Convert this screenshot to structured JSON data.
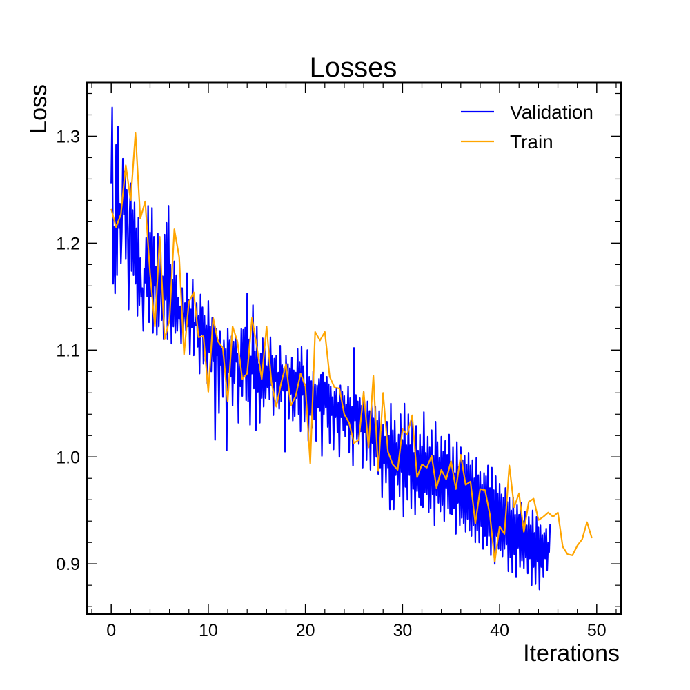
{
  "chart_data": {
    "type": "line",
    "title": "Losses",
    "xlabel": "Iterations",
    "ylabel": "Loss",
    "xlim": [
      -2.5,
      52.5
    ],
    "ylim": [
      0.853,
      1.35
    ],
    "xticks": [
      0,
      10,
      20,
      30,
      40,
      50
    ],
    "xtick_labels": [
      "0",
      "10",
      "20",
      "30",
      "40",
      "50"
    ],
    "yticks": [
      0.9,
      1.0,
      1.1,
      1.2,
      1.3
    ],
    "ytick_labels": [
      "0.9",
      "1.0",
      "1.1",
      "1.2",
      "1.3"
    ],
    "grid": false,
    "legend_position": "upper right",
    "series": [
      {
        "name": "Validation",
        "color": "#0000ff",
        "x_start": 0,
        "x_step": 0.1,
        "values": [
          1.256,
          1.327,
          1.162,
          1.215,
          1.153,
          1.292,
          1.17,
          1.309,
          1.214,
          1.237,
          1.181,
          1.211,
          1.279,
          1.227,
          1.267,
          1.185,
          1.25,
          1.214,
          1.138,
          1.229,
          1.256,
          1.174,
          1.231,
          1.17,
          1.238,
          1.162,
          1.214,
          1.132,
          1.224,
          1.142,
          1.186,
          1.15,
          1.158,
          1.118,
          1.176,
          1.163,
          1.205,
          1.15,
          1.235,
          1.126,
          1.21,
          1.15,
          1.233,
          1.116,
          1.206,
          1.16,
          1.178,
          1.114,
          1.209,
          1.122,
          1.153,
          1.192,
          1.128,
          1.169,
          1.11,
          1.208,
          1.147,
          1.219,
          1.11,
          1.235,
          1.128,
          1.18,
          1.106,
          1.166,
          1.122,
          1.183,
          1.116,
          1.17,
          1.118,
          1.149,
          1.129,
          1.141,
          1.106,
          1.158,
          1.116,
          1.133,
          1.144,
          1.118,
          1.172,
          1.122,
          1.147,
          1.096,
          1.138,
          1.121,
          1.166,
          1.095,
          1.126,
          1.123,
          1.144,
          1.103,
          1.132,
          1.078,
          1.152,
          1.115,
          1.14,
          1.087,
          1.132,
          1.09,
          1.123,
          1.069,
          1.146,
          1.098,
          1.122,
          1.08,
          1.13,
          1.09,
          1.126,
          1.016,
          1.12,
          1.095,
          1.109,
          1.041,
          1.118,
          1.086,
          1.101,
          1.056,
          1.109,
          1.082,
          1.101,
          1.006,
          1.12,
          1.079,
          1.109,
          1.075,
          1.113,
          1.048,
          1.108,
          1.069,
          1.112,
          1.089,
          1.097,
          1.032,
          1.094,
          1.066,
          1.12,
          1.057,
          1.119,
          1.075,
          1.121,
          1.053,
          1.153,
          1.052,
          1.11,
          1.03,
          1.094,
          1.078,
          1.142,
          1.064,
          1.099,
          1.025,
          1.122,
          1.061,
          1.087,
          1.032,
          1.097,
          1.055,
          1.111,
          1.047,
          1.102,
          1.055,
          1.085,
          1.065,
          1.093,
          1.054,
          1.112,
          1.067,
          1.095,
          1.039,
          1.092,
          1.071,
          1.095,
          1.051,
          1.079,
          1.045,
          1.104,
          1.052,
          1.086,
          1.062,
          1.083,
          1.005,
          1.095,
          1.062,
          1.087,
          1.036,
          1.083,
          1.059,
          1.093,
          1.034,
          1.081,
          1.038,
          1.079,
          1.055,
          1.101,
          1.04,
          1.089,
          1.024,
          1.103,
          1.058,
          1.085,
          1.033,
          1.068,
          1.049,
          1.1,
          1.015,
          1.075,
          1.039,
          1.071,
          1.027,
          1.08,
          1.035,
          1.068,
          1.015,
          1.067,
          1.046,
          1.073,
          1.043,
          1.077,
          1.001,
          1.079,
          1.04,
          1.07,
          1.046,
          1.075,
          1.028,
          1.068,
          1.013,
          1.066,
          1.039,
          1.056,
          1.007,
          1.061,
          1.037,
          1.064,
          1.023,
          1.051,
          1.0,
          1.067,
          1.037,
          1.061,
          1.025,
          1.057,
          1.019,
          1.049,
          1.03,
          1.066,
          1.004,
          1.055,
          1.021,
          1.047,
          0.992,
          1.102,
          1.034,
          1.058,
          1.017,
          1.052,
          1.012,
          1.055,
          1.024,
          1.048,
          0.99,
          1.061,
          1.023,
          1.043,
          0.997,
          1.052,
          1.009,
          1.043,
          0.988,
          1.049,
          1.013,
          1.036,
          0.992,
          1.047,
          1.0,
          1.034,
          0.984,
          1.043,
          0.99,
          1.024,
          0.962,
          1.03,
          0.994,
          1.019,
          0.976,
          1.033,
          0.99,
          1.02,
          0.951,
          1.05,
          0.96,
          1.025,
          0.951,
          1.034,
          0.983,
          1.013,
          0.974,
          1.021,
          0.963,
          1.04,
          0.986,
          1.016,
          0.944,
          1.05,
          0.972,
          1.011,
          0.96,
          1.04,
          0.983,
          1.011,
          0.952,
          1.035,
          0.97,
          1.004,
          0.946,
          1.029,
          0.968,
          1.006,
          0.962,
          1.021,
          0.955,
          1.01,
          0.953,
          1.042,
          0.967,
          1.004,
          0.965,
          1.019,
          0.948,
          1.009,
          0.952,
          1.025,
          0.965,
          1.001,
          0.936,
          1.033,
          0.964,
          1.014,
          0.957,
          0.999,
          0.949,
          1.019,
          0.955,
          1.005,
          0.94,
          1.015,
          0.971,
          1.002,
          0.952,
          1.021,
          0.947,
          0.994,
          0.946,
          1.009,
          0.952,
          0.985,
          0.928,
          1.014,
          0.957,
          0.991,
          0.936,
          1.009,
          0.943,
          0.997,
          0.938,
          1.001,
          0.93,
          0.993,
          0.942,
          1.004,
          0.931,
          0.992,
          0.926,
          0.997,
          0.936,
          0.98,
          0.92,
          0.999,
          0.931,
          0.983,
          0.92,
          0.986,
          0.935,
          0.974,
          0.914,
          0.985,
          0.926,
          0.982,
          0.917,
          0.992,
          0.926,
          0.971,
          0.908,
          0.99,
          0.92,
          0.969,
          0.9,
          0.982,
          0.926,
          0.966,
          0.914,
          0.975,
          0.913,
          0.965,
          0.907,
          0.962,
          0.914,
          0.971,
          0.918,
          0.958,
          0.893,
          0.962,
          0.906,
          0.95,
          0.892,
          0.962,
          0.909,
          0.946,
          0.888,
          0.955,
          0.915,
          0.946,
          0.897,
          0.957,
          0.903,
          0.94,
          0.896,
          0.949,
          0.906,
          0.936,
          0.891,
          0.944,
          0.905,
          0.936,
          0.88,
          0.95,
          0.897,
          0.929,
          0.881,
          0.944,
          0.902,
          0.934,
          0.876,
          0.936,
          0.897,
          0.927,
          0.888,
          0.929,
          0.905,
          0.933,
          0.894,
          0.92,
          0.911,
          0.937
        ]
      },
      {
        "name": "Train",
        "color": "#ffa500",
        "x_start": 0,
        "x_step": 0.5,
        "values": [
          1.232,
          1.215,
          1.227,
          1.273,
          1.24,
          1.303,
          1.223,
          1.239,
          1.172,
          1.122,
          1.206,
          1.11,
          1.128,
          1.213,
          1.187,
          1.096,
          1.145,
          1.154,
          1.112,
          1.113,
          1.061,
          1.13,
          1.108,
          1.102,
          1.052,
          1.122,
          1.108,
          1.073,
          1.078,
          1.13,
          1.103,
          1.073,
          1.122,
          1.07,
          1.047,
          1.069,
          1.087,
          1.048,
          1.057,
          1.078,
          1.066,
          0.994,
          1.117,
          1.109,
          1.117,
          1.075,
          1.065,
          1.064,
          1.04,
          1.032,
          1.013,
          1.016,
          1.061,
          1.009,
          1.076,
          0.987,
          1.06,
          1.005,
          0.993,
          0.988,
          1.026,
          1.021,
          1.039,
          0.981,
          0.993,
          0.99,
          1.001,
          0.971,
          0.988,
          0.979,
          0.996,
          0.97,
          1.002,
          0.974,
          0.977,
          0.938,
          0.97,
          0.969,
          0.946,
          0.902,
          0.935,
          0.928,
          0.992,
          0.953,
          0.966,
          0.93,
          0.958,
          0.961,
          0.941,
          0.944,
          0.948,
          0.944,
          0.948,
          0.916,
          0.909,
          0.908,
          0.917,
          0.923,
          0.939,
          0.924
        ]
      }
    ]
  }
}
